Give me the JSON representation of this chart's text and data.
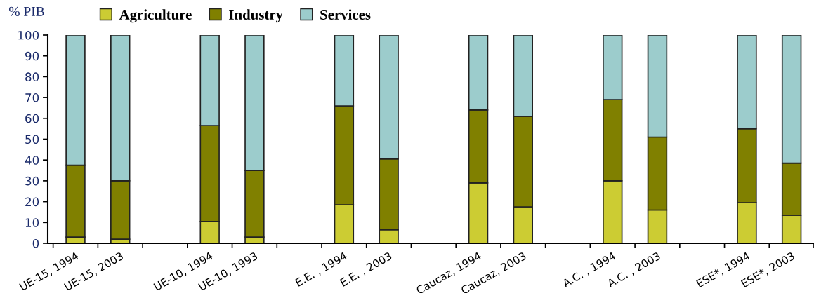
{
  "chart_data": {
    "type": "bar",
    "stacked": true,
    "ylabel": "% PIB",
    "categories": [
      "UE-15, 1994",
      "UE-15, 2003",
      null,
      "UE-10, 1994",
      "UE-10, 1993",
      null,
      "E.E. , 1994",
      "E.E. , 2003",
      null,
      "Caucaz, 1994",
      "Caucaz, 2003",
      null,
      "A.C. , 1994",
      "A.C. , 2003",
      null,
      "ESE*, 1994",
      "ESE*, 2003"
    ],
    "series": [
      {
        "name": "Agriculture",
        "color": "#cccc33",
        "values": [
          3,
          2,
          null,
          10.5,
          3,
          null,
          18.5,
          6.5,
          null,
          29,
          17.5,
          null,
          30,
          16,
          null,
          19.5,
          13.5
        ]
      },
      {
        "name": "Industry",
        "color": "#808000",
        "values": [
          34.5,
          28,
          null,
          46,
          32,
          null,
          47.5,
          34,
          null,
          35,
          43.5,
          null,
          39,
          35,
          null,
          35.5,
          25
        ]
      },
      {
        "name": "Services",
        "color": "#9ccccc",
        "values": [
          62.5,
          70,
          null,
          43.5,
          65,
          null,
          34,
          59.5,
          null,
          36,
          39,
          null,
          31,
          49,
          null,
          45,
          61.5
        ]
      }
    ],
    "ylim": [
      0,
      100
    ],
    "yticks": [
      0,
      10,
      20,
      30,
      40,
      50,
      60,
      70,
      80,
      90,
      100
    ],
    "grid": false,
    "legend": "top"
  }
}
